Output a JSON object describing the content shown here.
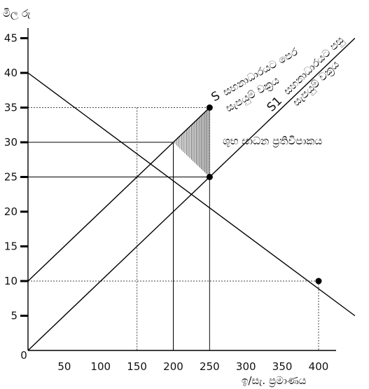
{
  "chart_data": {
    "type": "line",
    "ylabel": "මිල රු",
    "xlabel": "ඉ/සැ. ප්‍රමාණය",
    "xlim": [
      0,
      450
    ],
    "ylim": [
      0,
      47
    ],
    "x_ticks": [
      0,
      50,
      100,
      150,
      200,
      250,
      300,
      350,
      400
    ],
    "y_ticks": [
      5,
      10,
      15,
      20,
      25,
      30,
      35,
      40,
      45
    ],
    "grid": false,
    "series": [
      {
        "id": "demand",
        "x": [
          0,
          450
        ],
        "y": [
          40,
          5
        ],
        "color": "#000000"
      },
      {
        "id": "supply_before",
        "name": "S",
        "x": [
          0,
          250
        ],
        "y": [
          10,
          35
        ],
        "color": "#000000"
      },
      {
        "id": "supply_after",
        "name": "S1",
        "x": [
          0,
          450
        ],
        "y": [
          0,
          45
        ],
        "color": "#000000"
      }
    ],
    "points": [
      {
        "id": "s-end",
        "x": 250,
        "y": 35
      },
      {
        "id": "equilibrium-after",
        "x": 250,
        "y": 25
      },
      {
        "id": "demand-point",
        "x": 400,
        "y": 10
      }
    ],
    "guides_solid": [
      {
        "x": 200,
        "y": 30
      },
      {
        "x": 250,
        "y": 25
      }
    ],
    "guides_dashed": [
      {
        "x": 250,
        "y": 35
      },
      {
        "x": 150,
        "y": 35,
        "vertical_only": true
      },
      {
        "x": 400,
        "y": 10
      }
    ],
    "shaded_region": [
      [
        200,
        30
      ],
      [
        250,
        35
      ],
      [
        250,
        25
      ]
    ],
    "annotations": {
      "s_label": "S",
      "s_text_1": "සහනාධාරයට පෙර",
      "s_text_2": "සැපයුම් වක්‍රය",
      "s1_label": "S1",
      "s1_text_1": "සහනාධාරයට පසු",
      "s1_text_2": "සැපයුම් වක්‍රය",
      "welfare_text": "ශුභ සාධන ප්‍රතිවිපාකය"
    }
  }
}
